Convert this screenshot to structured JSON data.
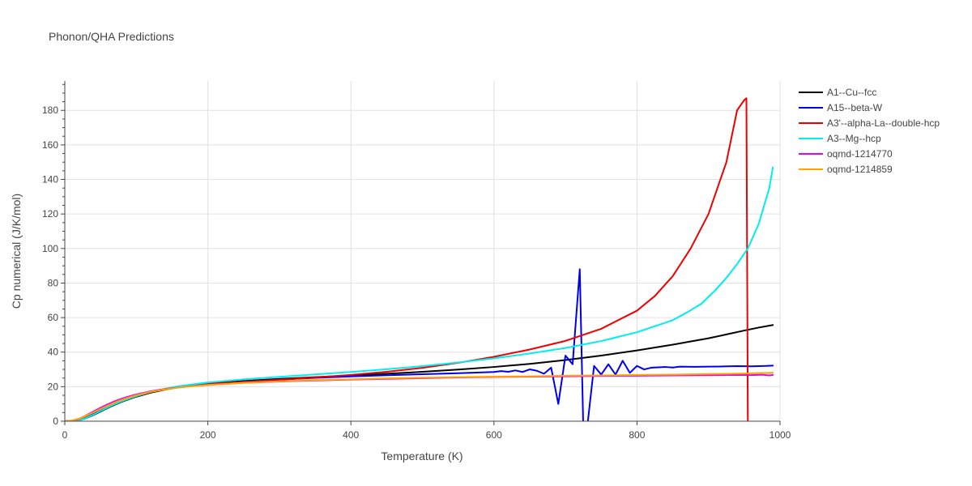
{
  "chart_data": {
    "type": "line",
    "title": "Phonon/QHA Predictions",
    "xlabel": "Temperature (K)",
    "ylabel": "Cp numerical (J/K/mol)",
    "xlim": [
      0,
      1000
    ],
    "ylim": [
      0,
      197
    ],
    "xticks": [
      0,
      200,
      400,
      600,
      800,
      1000
    ],
    "yticks": [
      0,
      20,
      40,
      60,
      80,
      100,
      120,
      140,
      160,
      180
    ],
    "grid": true,
    "legend_position": "top-right",
    "series": [
      {
        "name": "A1--Cu--fcc",
        "color": "#000000",
        "x": [
          0,
          10,
          20,
          30,
          40,
          50,
          60,
          70,
          80,
          90,
          100,
          120,
          140,
          160,
          180,
          200,
          250,
          300,
          350,
          400,
          450,
          500,
          550,
          600,
          650,
          700,
          750,
          800,
          850,
          900,
          950,
          970,
          990
        ],
        "y": [
          0,
          0.1,
          0.5,
          1.8,
          3.6,
          5.6,
          7.7,
          9.6,
          11.3,
          12.8,
          14.2,
          16.5,
          18.3,
          19.7,
          20.8,
          21.7,
          23.3,
          24.5,
          25.5,
          26.5,
          27.5,
          28.6,
          29.9,
          31.4,
          33.2,
          35.4,
          38.0,
          41.0,
          44.3,
          48.0,
          52.5,
          54.2,
          55.7
        ]
      },
      {
        "name": "A15--beta-W",
        "color": "#0000ee",
        "x": [
          0,
          10,
          20,
          30,
          40,
          50,
          60,
          70,
          80,
          90,
          100,
          120,
          140,
          160,
          180,
          200,
          250,
          300,
          350,
          400,
          450,
          500,
          550,
          600,
          610,
          620,
          630,
          640,
          650,
          660,
          670,
          680,
          690,
          700,
          710,
          720,
          725,
          730,
          740,
          750,
          760,
          770,
          780,
          790,
          800,
          810,
          820,
          830,
          840,
          850,
          860,
          880,
          900,
          920,
          940,
          960,
          980,
          990
        ],
        "y": [
          0,
          0.1,
          0.6,
          2.2,
          4.2,
          6.3,
          8.4,
          10.3,
          12.0,
          13.5,
          14.8,
          16.9,
          18.5,
          19.7,
          20.6,
          21.4,
          22.9,
          24.1,
          25.1,
          25.9,
          26.6,
          27.2,
          27.8,
          28.5,
          29.0,
          28.6,
          29.4,
          28.5,
          30.0,
          29.2,
          27.5,
          31.0,
          10.0,
          38.0,
          33.0,
          88.0,
          -5.0,
          -5.0,
          32.0,
          27.0,
          33.0,
          27.0,
          35.0,
          28.0,
          32.0,
          30.0,
          31.0,
          31.2,
          31.4,
          31.1,
          31.6,
          31.5,
          31.6,
          31.7,
          31.9,
          31.8,
          32.0,
          32.2
        ]
      },
      {
        "name": "A3'--alpha-La--double-hcp",
        "color": "#ee0000",
        "x": [
          0,
          10,
          20,
          30,
          40,
          50,
          60,
          70,
          80,
          90,
          100,
          120,
          140,
          160,
          180,
          200,
          250,
          300,
          350,
          400,
          450,
          500,
          550,
          600,
          650,
          700,
          750,
          800,
          825,
          850,
          875,
          900,
          925,
          940,
          950,
          953,
          955
        ],
        "y": [
          0,
          0.2,
          1.0,
          3.0,
          5.2,
          7.3,
          9.3,
          11.1,
          12.7,
          14.0,
          15.2,
          17.2,
          18.7,
          19.8,
          20.7,
          21.4,
          22.8,
          24.0,
          25.3,
          26.8,
          28.6,
          30.9,
          33.8,
          37.3,
          41.5,
          46.5,
          53.5,
          64.0,
          72.5,
          84.0,
          100.0,
          120.0,
          150.0,
          180.0,
          186.0,
          187.0,
          0
        ]
      },
      {
        "name": "A3--Mg--hcp",
        "color": "#00eeee",
        "x": [
          0,
          10,
          20,
          30,
          40,
          50,
          60,
          70,
          80,
          90,
          100,
          120,
          140,
          160,
          180,
          200,
          250,
          300,
          350,
          400,
          450,
          500,
          550,
          600,
          650,
          700,
          750,
          800,
          850,
          870,
          890,
          900,
          910,
          925,
          940,
          955,
          970,
          985,
          990
        ],
        "y": [
          0,
          0.1,
          0.5,
          1.9,
          3.8,
          5.9,
          8.0,
          9.9,
          11.6,
          13.1,
          14.5,
          16.9,
          18.8,
          20.3,
          21.4,
          22.4,
          24.2,
          25.7,
          27.1,
          28.5,
          30.1,
          31.9,
          34.0,
          36.4,
          39.2,
          42.4,
          46.4,
          51.5,
          58.5,
          63.0,
          68.0,
          72.0,
          76.0,
          83.0,
          91.0,
          100.0,
          114.0,
          135.0,
          147.0
        ]
      },
      {
        "name": "oqmd-1214770",
        "color": "#ee00ee",
        "x": [
          0,
          10,
          20,
          30,
          40,
          50,
          60,
          70,
          80,
          90,
          100,
          120,
          140,
          160,
          180,
          200,
          250,
          300,
          350,
          400,
          450,
          500,
          550,
          600,
          650,
          700,
          750,
          800,
          850,
          900,
          940,
          960,
          975,
          985,
          990
        ],
        "y": [
          0,
          0.3,
          1.3,
          3.4,
          5.6,
          7.8,
          9.8,
          11.6,
          13.1,
          14.4,
          15.5,
          17.3,
          18.6,
          19.6,
          20.4,
          21.0,
          22.2,
          23.0,
          23.6,
          24.1,
          24.5,
          24.9,
          25.3,
          25.6,
          25.8,
          26.0,
          26.2,
          26.3,
          26.5,
          26.6,
          26.8,
          26.7,
          26.9,
          26.5,
          26.8
        ]
      },
      {
        "name": "oqmd-1214859",
        "color": "#ffa500",
        "x": [
          0,
          10,
          20,
          30,
          40,
          50,
          60,
          70,
          80,
          90,
          100,
          120,
          140,
          160,
          180,
          200,
          250,
          300,
          350,
          400,
          450,
          500,
          550,
          600,
          650,
          700,
          750,
          800,
          850,
          900,
          950,
          970,
          990
        ],
        "y": [
          0,
          0.4,
          1.5,
          3.2,
          5.1,
          7.1,
          9.0,
          10.8,
          12.4,
          13.8,
          15.0,
          17.0,
          18.4,
          19.5,
          20.3,
          21.0,
          22.2,
          23.1,
          23.8,
          24.3,
          24.8,
          25.2,
          25.5,
          25.8,
          26.0,
          26.3,
          26.5,
          26.8,
          27.0,
          27.3,
          27.6,
          27.9,
          28.0
        ]
      }
    ]
  }
}
